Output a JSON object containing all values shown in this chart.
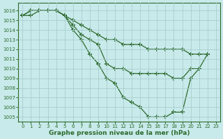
{
  "series": [
    {
      "x": [
        0,
        1,
        2,
        3,
        4,
        5,
        6,
        7,
        8,
        9,
        10,
        11,
        12,
        13,
        14,
        15,
        16,
        17,
        18,
        19,
        20,
        21,
        22
      ],
      "y": [
        1015.5,
        1015.5,
        1016.0,
        1016.0,
        1016.0,
        1015.5,
        1015.0,
        1014.5,
        1014.0,
        1013.5,
        1013.0,
        1013.0,
        1012.5,
        1012.5,
        1012.5,
        1012.0,
        1012.0,
        1012.0,
        1012.0,
        1012.0,
        1011.5,
        1011.5,
        1011.5
      ]
    },
    {
      "x": [
        0,
        1,
        2,
        3,
        4,
        5,
        6,
        7,
        8,
        9,
        10,
        11,
        12,
        13,
        14,
        15,
        16,
        17,
        18,
        19,
        20,
        21,
        22
      ],
      "y": [
        1015.5,
        1016.0,
        1016.0,
        1016.0,
        1016.0,
        1015.5,
        1014.5,
        1013.5,
        1013.0,
        1012.5,
        1010.5,
        1010.0,
        1010.0,
        1009.5,
        1009.5,
        1009.5,
        1009.5,
        1009.5,
        1009.0,
        1009.0,
        1010.0,
        1010.0,
        1011.5
      ]
    },
    {
      "x": [
        0,
        1,
        2,
        3,
        4,
        5,
        6,
        7,
        8,
        9,
        10,
        11,
        12,
        13,
        14,
        15,
        16,
        17,
        18,
        19,
        20,
        21
      ],
      "y": [
        1015.5,
        1016.0,
        1016.0,
        1016.0,
        1016.0,
        1015.5,
        1014.0,
        1013.0,
        1011.5,
        1010.5,
        1009.0,
        1008.5,
        1007.0,
        1006.5,
        1006.0,
        1005.0,
        1005.0,
        1005.0,
        1005.5,
        1005.5,
        1009.0,
        1010.0
      ]
    }
  ],
  "line_color": "#2d6a2d",
  "marker": "+",
  "marker_size": 4,
  "marker_lw": 1.2,
  "line_width": 0.9,
  "bg_color": "#c8eaea",
  "grid_color": "#a8cece",
  "xlim": [
    -0.5,
    23.5
  ],
  "ylim": [
    1004.5,
    1016.8
  ],
  "xticks": [
    0,
    1,
    2,
    3,
    4,
    5,
    6,
    7,
    8,
    9,
    10,
    11,
    12,
    13,
    14,
    15,
    16,
    17,
    18,
    19,
    20,
    21,
    22,
    23
  ],
  "yticks": [
    1005,
    1006,
    1007,
    1008,
    1009,
    1010,
    1011,
    1012,
    1013,
    1014,
    1015,
    1016
  ],
  "xlabel": "Graphe pression niveau de la mer (hPa)",
  "tick_fontsize": 5.0,
  "label_fontsize": 6.5
}
